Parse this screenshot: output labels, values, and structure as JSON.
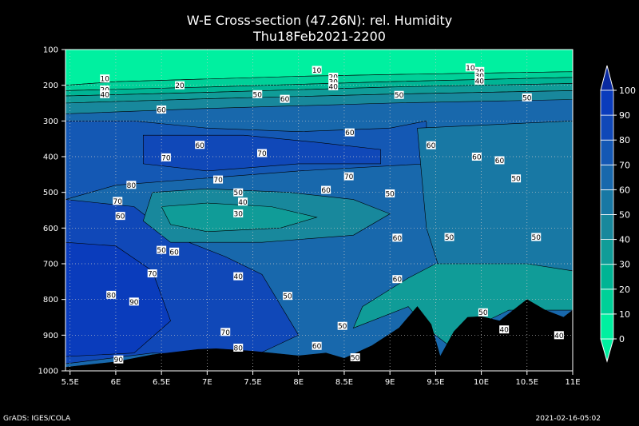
{
  "chart_data": {
    "type": "heatmap",
    "title": "W-E Cross-section (47.26N): rel. Humidity",
    "subtitle": "Thu18Feb2021-2200",
    "xlabel": "",
    "ylabel": "",
    "x_ticks": [
      "5.5E",
      "6E",
      "6.5E",
      "7E",
      "7.5E",
      "8E",
      "8.5E",
      "9E",
      "9.5E",
      "10E",
      "10.5E",
      "11E"
    ],
    "y_ticks": [
      100,
      200,
      300,
      400,
      500,
      600,
      700,
      800,
      900,
      1000
    ],
    "xlim": [
      5.45,
      11.0
    ],
    "ylim": [
      1000,
      100
    ],
    "grid": true,
    "colorbar": {
      "levels": [
        0,
        10,
        20,
        30,
        40,
        50,
        60,
        70,
        80,
        90,
        100
      ],
      "colors": [
        "#00f0a0",
        "#00d098",
        "#00b494",
        "#109c98",
        "#18889c",
        "#1878a4",
        "#1868ac",
        "#1458b4",
        "#1048b8",
        "#0a3cbc"
      ]
    },
    "contour_labels": [
      {
        "v": "10",
        "x": 5.88,
        "p": 181
      },
      {
        "v": "20",
        "x": 6.7,
        "p": 200
      },
      {
        "v": "20",
        "x": 5.88,
        "p": 212
      },
      {
        "v": "40",
        "x": 5.88,
        "p": 225
      },
      {
        "v": "60",
        "x": 6.5,
        "p": 268
      },
      {
        "v": "50",
        "x": 7.55,
        "p": 225
      },
      {
        "v": "60",
        "x": 7.85,
        "p": 238
      },
      {
        "v": "10",
        "x": 8.2,
        "p": 157
      },
      {
        "v": "20",
        "x": 8.38,
        "p": 176
      },
      {
        "v": "30",
        "x": 8.38,
        "p": 190
      },
      {
        "v": "40",
        "x": 8.38,
        "p": 203
      },
      {
        "v": "10",
        "x": 9.88,
        "p": 150
      },
      {
        "v": "20",
        "x": 9.98,
        "p": 160
      },
      {
        "v": "30",
        "x": 9.98,
        "p": 173
      },
      {
        "v": "40",
        "x": 9.98,
        "p": 187
      },
      {
        "v": "50",
        "x": 9.1,
        "p": 227
      },
      {
        "v": "50",
        "x": 10.5,
        "p": 234
      },
      {
        "v": "60",
        "x": 8.56,
        "p": 332
      },
      {
        "v": "60",
        "x": 6.92,
        "p": 367
      },
      {
        "v": "70",
        "x": 7.6,
        "p": 390
      },
      {
        "v": "70",
        "x": 6.55,
        "p": 402
      },
      {
        "v": "70",
        "x": 7.12,
        "p": 464
      },
      {
        "v": "60",
        "x": 9.45,
        "p": 368
      },
      {
        "v": "60",
        "x": 9.95,
        "p": 400
      },
      {
        "v": "60",
        "x": 10.2,
        "p": 410
      },
      {
        "v": "50",
        "x": 10.38,
        "p": 461
      },
      {
        "v": "70",
        "x": 8.55,
        "p": 455
      },
      {
        "v": "60",
        "x": 8.3,
        "p": 493
      },
      {
        "v": "50",
        "x": 9.0,
        "p": 503
      },
      {
        "v": "80",
        "x": 6.17,
        "p": 479
      },
      {
        "v": "70",
        "x": 6.02,
        "p": 524
      },
      {
        "v": "60",
        "x": 6.05,
        "p": 566
      },
      {
        "v": "50",
        "x": 7.34,
        "p": 500
      },
      {
        "v": "40",
        "x": 7.39,
        "p": 526
      },
      {
        "v": "30",
        "x": 7.34,
        "p": 559
      },
      {
        "v": "60",
        "x": 9.08,
        "p": 627
      },
      {
        "v": "50",
        "x": 9.65,
        "p": 625
      },
      {
        "v": "50",
        "x": 10.6,
        "p": 625
      },
      {
        "v": "50",
        "x": 6.5,
        "p": 661
      },
      {
        "v": "60",
        "x": 6.64,
        "p": 666
      },
      {
        "v": "70",
        "x": 6.4,
        "p": 727
      },
      {
        "v": "40",
        "x": 7.34,
        "p": 735
      },
      {
        "v": "60",
        "x": 9.08,
        "p": 743
      },
      {
        "v": "80",
        "x": 5.95,
        "p": 787
      },
      {
        "v": "90",
        "x": 6.2,
        "p": 806
      },
      {
        "v": "50",
        "x": 7.88,
        "p": 790
      },
      {
        "v": "50",
        "x": 10.02,
        "p": 836
      },
      {
        "v": "40",
        "x": 10.25,
        "p": 884
      },
      {
        "v": "40",
        "x": 10.85,
        "p": 900
      },
      {
        "v": "50",
        "x": 8.48,
        "p": 874
      },
      {
        "v": "70",
        "x": 7.2,
        "p": 891
      },
      {
        "v": "80",
        "x": 7.34,
        "p": 935
      },
      {
        "v": "60",
        "x": 8.2,
        "p": 930
      },
      {
        "v": "50",
        "x": 8.62,
        "p": 962
      },
      {
        "v": "90",
        "x": 6.03,
        "p": 968
      }
    ]
  },
  "footer": {
    "left": "GrADS: IGES/COLA",
    "right": "2021-02-16-05:02"
  }
}
